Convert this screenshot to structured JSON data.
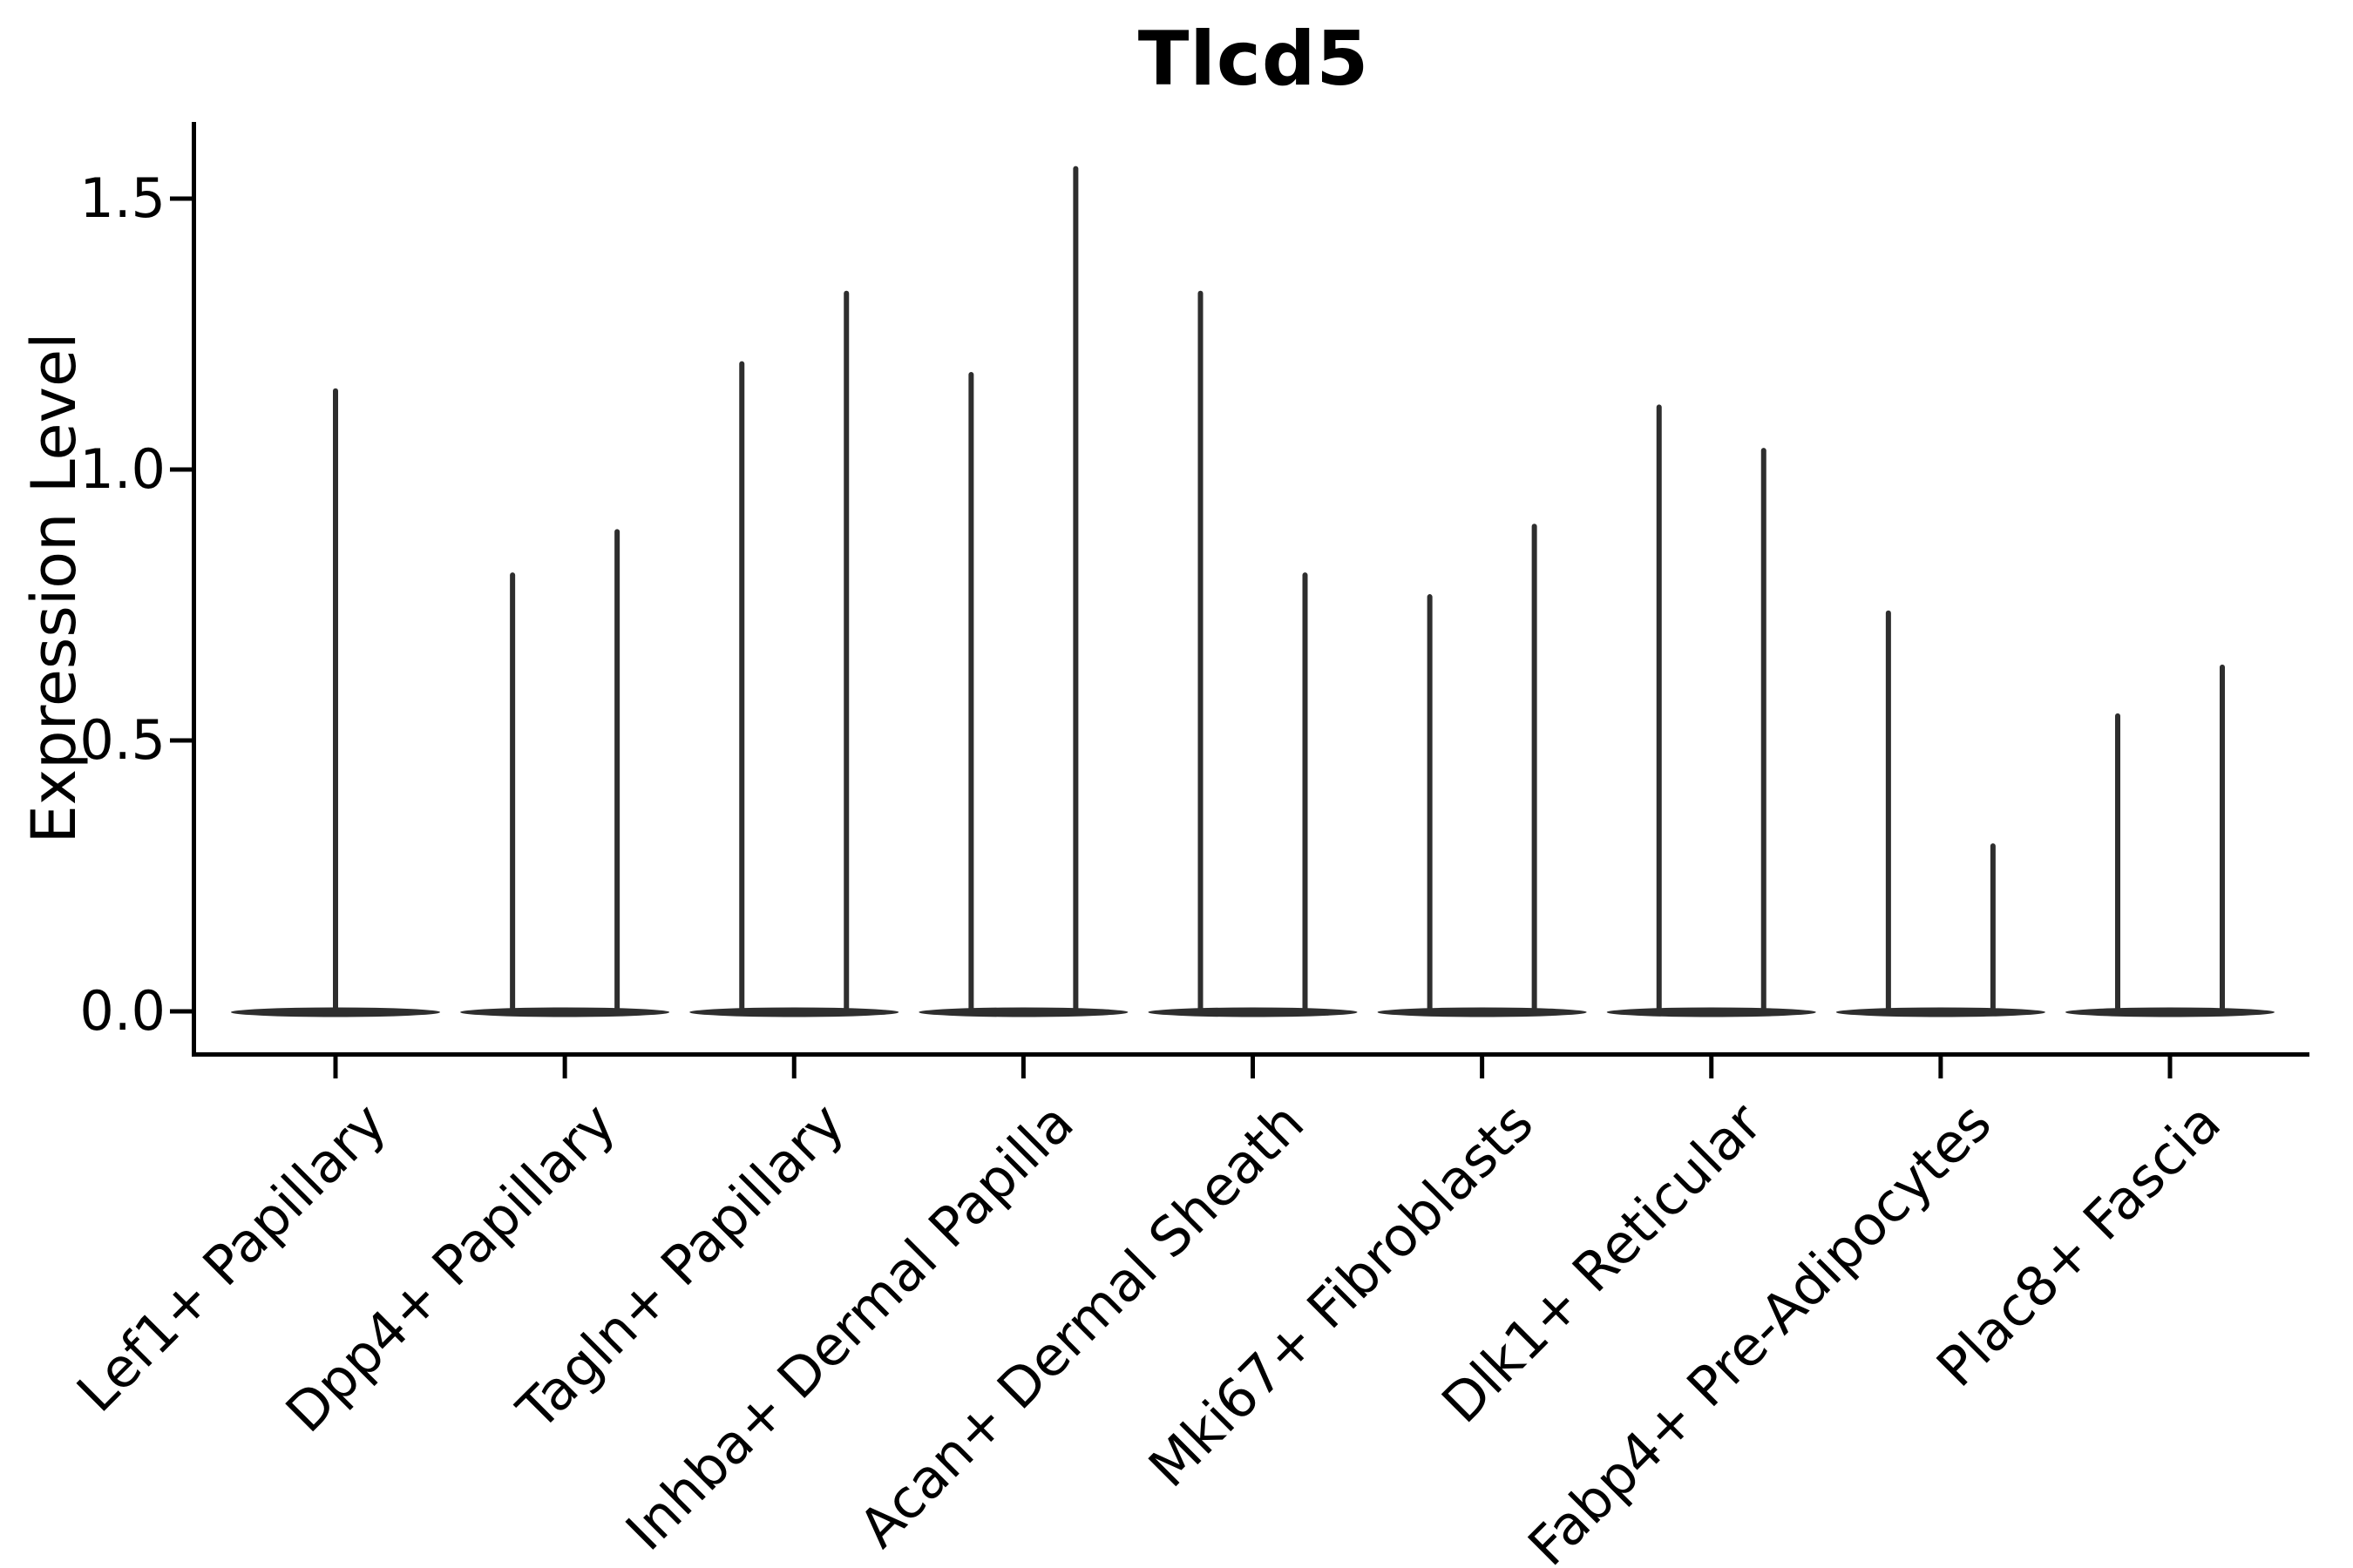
{
  "title": "Tlcd5",
  "colors": {
    "violin": "#2e2e2e",
    "axis": "#000000",
    "text": "#000000",
    "background": "#ffffff"
  },
  "chart_data": {
    "type": "violin",
    "title": "Tlcd5",
    "ylabel": "Expression Level",
    "xlabel": "",
    "grid": false,
    "legend": "none",
    "ylim": [
      -0.08,
      1.64
    ],
    "yticks": [
      "0.0",
      "0.5",
      "1.0",
      "1.5"
    ],
    "ytick_values": [
      0.0,
      0.5,
      1.0,
      1.5
    ],
    "categories": [
      "Lef1+ Papillary",
      "Dpp4+ Papillary",
      "Tagln+ Papillary",
      "Inhba+ Dermal Papilla",
      "Acan+ Dermal Sheath",
      "Mki67+ Fibroblasts",
      "Dlk1+ Reticular",
      "Fabp4+ Pre-Adipocytes",
      "Plac8+ Fascia"
    ],
    "series": [
      {
        "category": "Lef1+ Papillary",
        "violin_peaks": [
          1.15
        ]
      },
      {
        "category": "Dpp4+ Papillary",
        "violin_peaks": [
          0.81,
          0.89
        ]
      },
      {
        "category": "Tagln+ Papillary",
        "violin_peaks": [
          1.2,
          1.33
        ]
      },
      {
        "category": "Inhba+ Dermal Papilla",
        "violin_peaks": [
          1.18,
          1.56
        ]
      },
      {
        "category": "Acan+ Dermal Sheath",
        "violin_peaks": [
          1.33,
          0.81
        ]
      },
      {
        "category": "Mki67+ Fibroblasts",
        "violin_peaks": [
          0.77,
          0.9
        ]
      },
      {
        "category": "Dlk1+ Reticular",
        "violin_peaks": [
          1.12,
          1.04
        ]
      },
      {
        "category": "Fabp4+ Pre-Adipocytes",
        "violin_peaks": [
          0.74,
          0.31
        ]
      },
      {
        "category": "Plac8+ Fascia",
        "violin_peaks": [
          0.55,
          0.64
        ]
      }
    ],
    "violin_shape_note": "flat lens-shaped base at 0 with thin vertical spike(s) up to peak value"
  }
}
